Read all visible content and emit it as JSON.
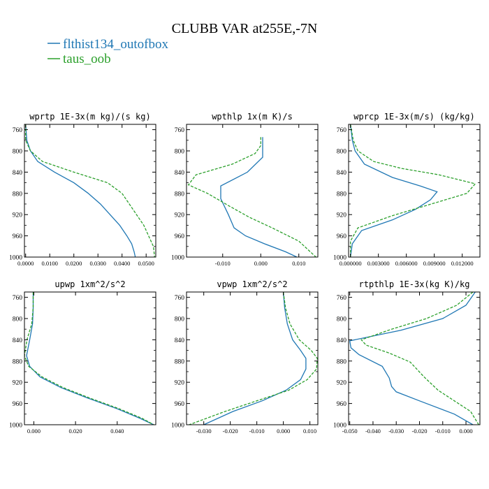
{
  "figure": {
    "title": "CLUBB VAR at255E,-7N"
  },
  "legend": [
    {
      "name": "flthist134_outofbox",
      "color": "#1f77b4",
      "dash": "solid"
    },
    {
      "name": "taus_oob",
      "color": "#2ca02c",
      "dash": "dashed"
    }
  ],
  "chart_data": [
    {
      "type": "line",
      "title": "wprtp  1E-3x(m kg)/(s kg)",
      "ylim": [
        1000,
        750
      ],
      "yticks": [
        760,
        800,
        840,
        880,
        920,
        960,
        1000
      ],
      "xlim": [
        -0.0005,
        0.054
      ],
      "xticks": [
        0.0,
        0.01,
        0.02,
        0.03,
        0.04,
        0.05
      ],
      "xticklabels": [
        "0.0000",
        "0.0100",
        "0.0200",
        "0.0300",
        "0.0400",
        "0.0500"
      ],
      "series": [
        {
          "name": "flthist134_outofbox",
          "x": [
            0.0,
            0.0005,
            0.002,
            0.005,
            0.012,
            0.02,
            0.026,
            0.031,
            0.035,
            0.039,
            0.042,
            0.044,
            0.045,
            0.0455
          ],
          "y": [
            750,
            780,
            800,
            820,
            840,
            860,
            880,
            900,
            920,
            940,
            960,
            975,
            990,
            1000
          ]
        },
        {
          "name": "taus_oob",
          "x": [
            0.0,
            0.0,
            0.002,
            0.007,
            0.02,
            0.034,
            0.04,
            0.043,
            0.046,
            0.049,
            0.051,
            0.053,
            0.0535
          ],
          "y": [
            750,
            780,
            800,
            820,
            840,
            860,
            880,
            900,
            920,
            940,
            960,
            980,
            1000
          ]
        }
      ]
    },
    {
      "type": "line",
      "title": "wpthlp  1x(m K)/s",
      "ylim": [
        1000,
        750
      ],
      "yticks": [
        760,
        800,
        840,
        880,
        920,
        960,
        1000
      ],
      "xlim": [
        -0.0195,
        0.015
      ],
      "xticks": [
        -0.01,
        0.0,
        0.01
      ],
      "xticklabels": [
        "-0.010",
        "0.000",
        "0.010"
      ],
      "series": [
        {
          "name": "flthist134_outofbox",
          "x": [
            0.0005,
            0.0005,
            0.0005,
            -0.0035,
            -0.0105,
            -0.0105,
            -0.0085,
            -0.007,
            -0.004,
            0.001,
            0.0065,
            0.0095
          ],
          "y": [
            774,
            790,
            812,
            840,
            866,
            890,
            920,
            945,
            960,
            975,
            990,
            1000
          ]
        },
        {
          "name": "taus_oob",
          "x": [
            0.0,
            0.0,
            -0.0015,
            -0.0075,
            -0.017,
            -0.019,
            -0.014,
            -0.008,
            -0.003,
            0.003,
            0.01,
            0.0145
          ],
          "y": [
            774,
            790,
            805,
            825,
            845,
            864,
            880,
            905,
            925,
            945,
            970,
            1000
          ]
        }
      ]
    },
    {
      "type": "line",
      "title": "wprcp  1E-3x(m/s) (kg/kg)",
      "ylim": [
        1000,
        750
      ],
      "yticks": [
        760,
        800,
        840,
        880,
        920,
        960,
        1000
      ],
      "xlim": [
        -0.0002,
        0.0139
      ],
      "xticks": [
        0.0,
        0.003,
        0.006,
        0.009,
        0.012
      ],
      "xticklabels": [
        "0.000000",
        "0.003000",
        "0.006000",
        "0.009000",
        "0.012000"
      ],
      "series": [
        {
          "name": "flthist134_outofbox",
          "x": [
            0.0,
            0.0002,
            0.0005,
            0.0015,
            0.0045,
            0.0075,
            0.0093,
            0.0086,
            0.007,
            0.0045,
            0.0012,
            0.0002,
            0.0
          ],
          "y": [
            750,
            780,
            800,
            825,
            850,
            866,
            877,
            892,
            910,
            930,
            950,
            975,
            1000
          ]
        },
        {
          "name": "taus_oob",
          "x": [
            0.0,
            0.0003,
            0.0008,
            0.0025,
            0.0055,
            0.0095,
            0.0134,
            0.0125,
            0.0045,
            0.0008,
            0.0,
            0.0
          ],
          "y": [
            750,
            780,
            800,
            820,
            833,
            845,
            862,
            880,
            922,
            945,
            970,
            1000
          ]
        }
      ]
    },
    {
      "type": "line",
      "title": "upwp  1xm^2/s^2",
      "ylim": [
        1000,
        750
      ],
      "yticks": [
        760,
        800,
        840,
        880,
        920,
        960,
        1000
      ],
      "xlim": [
        -0.0045,
        0.0585
      ],
      "xticks": [
        0.0,
        0.02,
        0.04
      ],
      "xticklabels": [
        "0.000",
        "0.020",
        "0.040"
      ],
      "series": [
        {
          "name": "flthist134_outofbox",
          "x": [
            -0.0003,
            -0.0003,
            -0.0006,
            -0.002,
            -0.0035,
            -0.002,
            0.003,
            0.013,
            0.026,
            0.04,
            0.051,
            0.0575
          ],
          "y": [
            750,
            780,
            810,
            840,
            870,
            890,
            910,
            930,
            950,
            970,
            988,
            1000
          ]
        },
        {
          "name": "taus_oob",
          "x": [
            -0.0003,
            -0.0003,
            -0.001,
            -0.0033,
            -0.0045,
            -0.0025,
            0.004,
            0.014,
            0.027,
            0.041,
            0.052,
            0.0575
          ],
          "y": [
            750,
            780,
            810,
            840,
            870,
            890,
            910,
            930,
            950,
            970,
            988,
            1000
          ]
        }
      ]
    },
    {
      "type": "line",
      "title": "vpwp  1xm^2/s^2",
      "ylim": [
        1000,
        750
      ],
      "yticks": [
        760,
        800,
        840,
        880,
        920,
        960,
        1000
      ],
      "xlim": [
        -0.0365,
        0.013
      ],
      "xticks": [
        -0.03,
        -0.02,
        -0.01,
        0.0,
        0.01
      ],
      "xticklabels": [
        "-0.030",
        "-0.020",
        "-0.010",
        "0.000",
        "0.010"
      ],
      "series": [
        {
          "name": "flthist134_outofbox",
          "x": [
            0.0,
            0.0005,
            0.0015,
            0.0035,
            0.0065,
            0.0085,
            0.0085,
            0.0065,
            0.001,
            -0.008,
            -0.019,
            -0.03
          ],
          "y": [
            750,
            780,
            810,
            840,
            860,
            875,
            895,
            915,
            935,
            955,
            975,
            1000
          ]
        },
        {
          "name": "taus_oob",
          "x": [
            0.0,
            0.0008,
            0.0025,
            0.006,
            0.0105,
            0.0128,
            0.0125,
            0.009,
            0.002,
            -0.01,
            -0.022,
            -0.0355
          ],
          "y": [
            750,
            780,
            810,
            840,
            860,
            875,
            895,
            915,
            935,
            955,
            975,
            1000
          ]
        }
      ]
    },
    {
      "type": "line",
      "title": "rtpthlp  1E-3x(kg K)/kg",
      "ylim": [
        1000,
        750
      ],
      "yticks": [
        760,
        800,
        840,
        880,
        920,
        960,
        1000
      ],
      "xlim": [
        -0.0505,
        0.006
      ],
      "xticks": [
        -0.05,
        -0.04,
        -0.03,
        -0.02,
        -0.01,
        0.0
      ],
      "xticklabels": [
        "-0.050",
        "-0.040",
        "-0.030",
        "-0.020",
        "-0.010",
        "0.000"
      ],
      "series": [
        {
          "name": "flthist134_outofbox",
          "x": [
            0.004,
            0.0,
            -0.01,
            -0.028,
            -0.05,
            -0.0495,
            -0.046,
            -0.036,
            -0.033,
            -0.032,
            -0.03,
            -0.02,
            -0.005,
            0.003
          ],
          "y": [
            750,
            775,
            800,
            822,
            842,
            855,
            868,
            890,
            912,
            928,
            938,
            955,
            980,
            1000
          ]
        },
        {
          "name": "taus_oob",
          "x": [
            0.003,
            -0.004,
            -0.017,
            -0.032,
            -0.045,
            -0.043,
            -0.033,
            -0.024,
            -0.018,
            -0.012,
            -0.005,
            0.002,
            0.0055
          ],
          "y": [
            750,
            775,
            800,
            820,
            840,
            850,
            865,
            882,
            910,
            935,
            955,
            975,
            1000
          ]
        }
      ]
    }
  ]
}
